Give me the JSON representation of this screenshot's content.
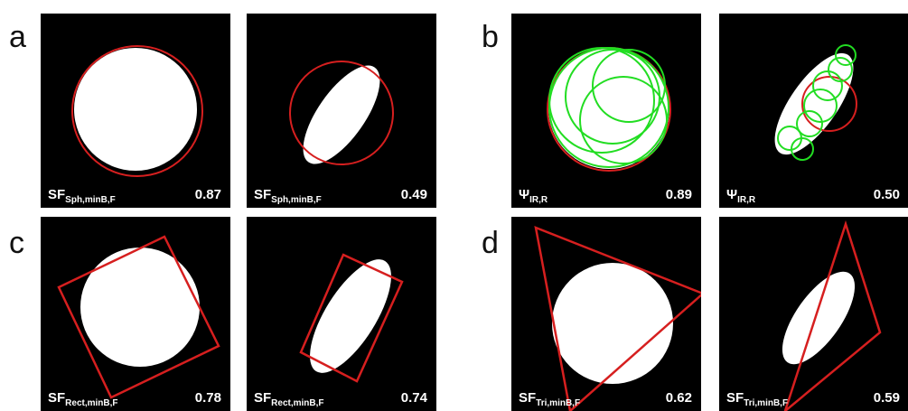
{
  "panels": [
    {
      "letter": "a",
      "images": [
        {
          "label": "SF",
          "subscript": "Sph,minB,F",
          "value": "0.87"
        },
        {
          "label": "SF",
          "subscript": "Sph,minB,F",
          "value": "0.49"
        }
      ]
    },
    {
      "letter": "b",
      "images": [
        {
          "label": "Ψ",
          "subscript": "IR,R",
          "value": "0.89"
        },
        {
          "label": "Ψ",
          "subscript": "IR,R",
          "value": "0.50"
        }
      ]
    },
    {
      "letter": "c",
      "images": [
        {
          "label": "SF",
          "subscript": "Rect,minB,F",
          "value": "0.78"
        },
        {
          "label": "SF",
          "subscript": "Rect,minB,F",
          "value": "0.74"
        }
      ]
    },
    {
      "letter": "d",
      "images": [
        {
          "label": "SF",
          "subscript": "Tri,minB,F",
          "value": "0.62"
        },
        {
          "label": "SF",
          "subscript": "Tri,minB,F",
          "value": "0.59"
        }
      ]
    }
  ]
}
